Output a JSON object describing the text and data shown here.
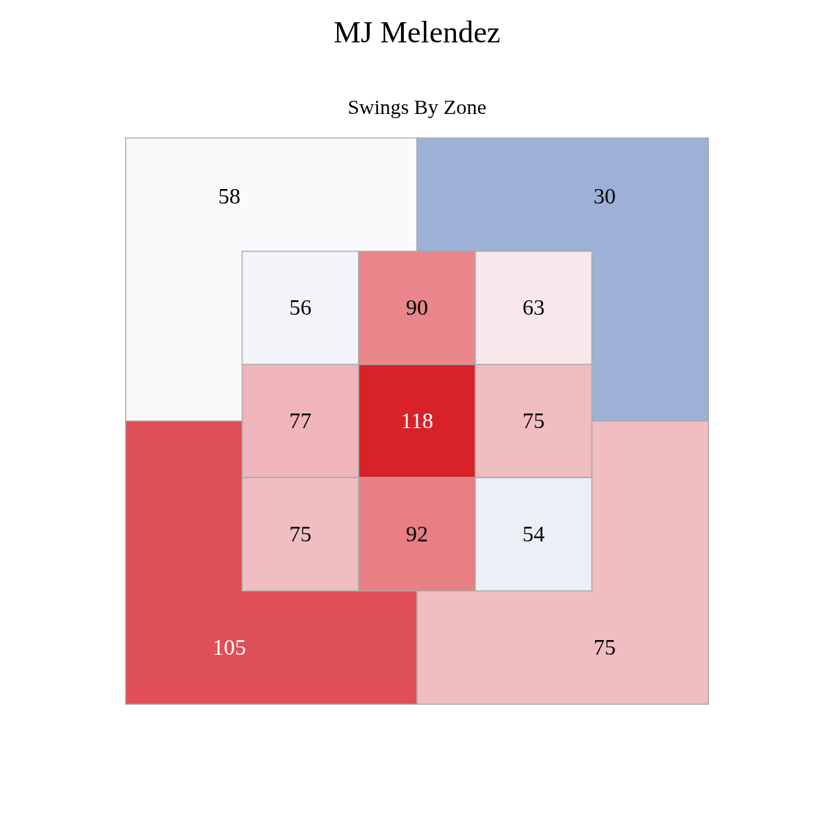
{
  "chart_data": [
    {
      "type": "heatmap",
      "title": "MJ Melendez",
      "subtitle": "Swings By Zone",
      "categories": [
        null,
        null
      ],
      "y_categories": [
        null,
        null
      ],
      "cells": [
        [
          58,
          30
        ],
        [
          105,
          75
        ]
      ],
      "data_labels": true
    },
    {
      "type": "heatmap",
      "categories": [
        null,
        null,
        null
      ],
      "y_categories": [
        null,
        null,
        null
      ],
      "cells": [
        [
          56,
          90,
          63
        ],
        [
          77,
          118,
          75
        ],
        [
          75,
          92,
          54
        ]
      ],
      "data_labels": true
    }
  ]
}
